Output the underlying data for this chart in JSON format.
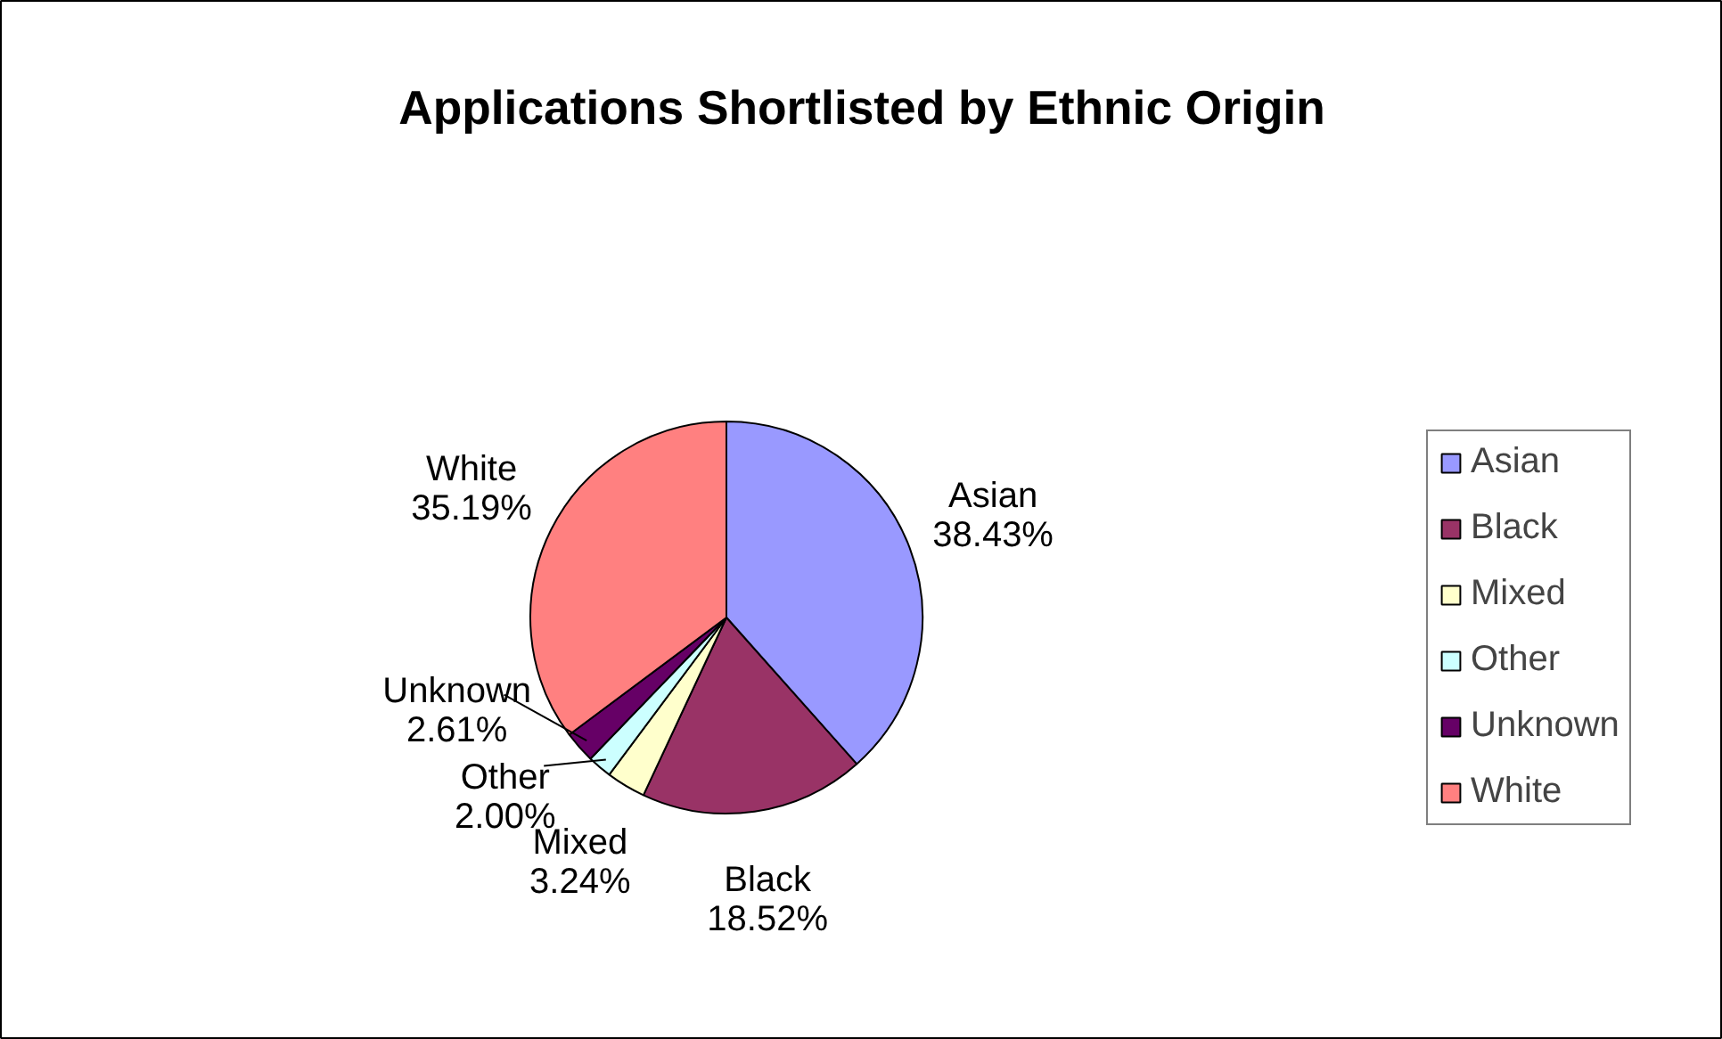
{
  "chart_data": {
    "type": "pie",
    "title": "Applications Shortlisted by Ethnic Origin",
    "categories": [
      "Asian",
      "Black",
      "Mixed",
      "Other",
      "Unknown",
      "White"
    ],
    "values": [
      38.43,
      18.52,
      3.24,
      2.0,
      2.61,
      35.19
    ],
    "colors": [
      "#9999ff",
      "#993366",
      "#ffffcc",
      "#ccffff",
      "#660066",
      "#ff8080"
    ],
    "value_labels": [
      "38.43%",
      "18.52%",
      "3.24%",
      "2.00%",
      "2.61%",
      "35.19%"
    ],
    "legend": "right"
  }
}
